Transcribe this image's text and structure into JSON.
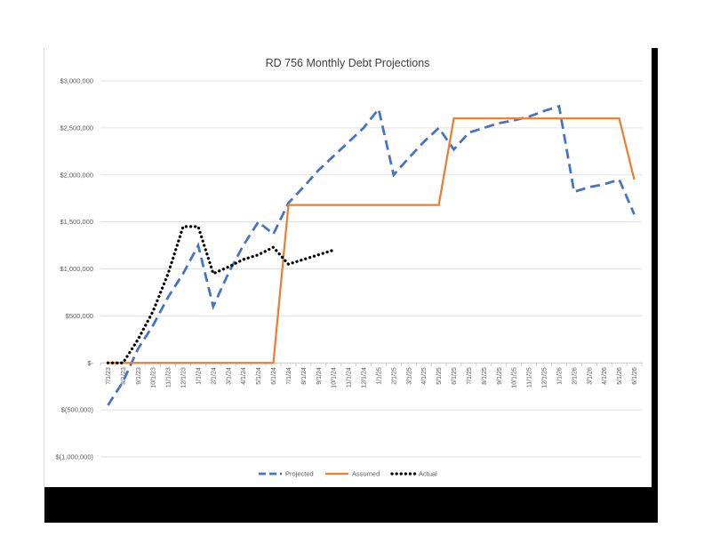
{
  "chart_data": {
    "type": "line",
    "title": "RD 756 Monthly Debt Projections",
    "xlabel": "",
    "ylabel": "",
    "ylim": [
      -1000000,
      3000000
    ],
    "y_ticks": [
      3000000,
      2500000,
      2000000,
      1500000,
      1000000,
      500000,
      0,
      -500000,
      -1000000
    ],
    "y_tick_labels": [
      "$3,000,000",
      "$2,500,000",
      "$2,000,000",
      "$1,500,000",
      "$1,000,000",
      "$500,000",
      "$-",
      "$(500,000)",
      "$(1,000,000)"
    ],
    "categories": [
      "7/1/23",
      "8/1/23",
      "9/1/23",
      "10/1/23",
      "11/1/23",
      "12/1/23",
      "1/1/24",
      "2/1/24",
      "3/1/24",
      "4/1/24",
      "5/1/24",
      "6/1/24",
      "7/1/24",
      "8/1/24",
      "9/1/24",
      "10/1/24",
      "11/1/24",
      "12/1/24",
      "1/1/25",
      "2/1/25",
      "3/1/25",
      "4/1/25",
      "5/1/25",
      "6/1/25",
      "7/1/25",
      "8/1/25",
      "9/1/25",
      "10/1/25",
      "11/1/25",
      "12/1/25",
      "1/1/26",
      "2/1/26",
      "3/1/26",
      "4/1/26",
      "5/1/26",
      "6/1/26"
    ],
    "grid": true,
    "legend_position": "bottom",
    "series": [
      {
        "name": "Projected",
        "color": "#4472c4",
        "style": "dashed",
        "values": [
          -450000,
          -200000,
          150000,
          400000,
          700000,
          950000,
          1250000,
          600000,
          950000,
          1250000,
          1500000,
          1370000,
          1700000,
          1870000,
          2050000,
          2200000,
          2350000,
          2500000,
          2700000,
          2000000,
          2180000,
          2350000,
          2500000,
          2270000,
          2450000,
          2500000,
          2550000,
          2580000,
          2620000,
          2680000,
          2730000,
          1820000,
          1870000,
          1900000,
          1950000,
          1580000
        ]
      },
      {
        "name": "Assumed",
        "color": "#ed7d31",
        "style": "solid",
        "values": [
          0,
          0,
          0,
          0,
          0,
          0,
          0,
          0,
          0,
          0,
          0,
          0,
          1680000,
          1680000,
          1680000,
          1680000,
          1680000,
          1680000,
          1680000,
          1680000,
          1680000,
          1680000,
          1680000,
          2600000,
          2600000,
          2600000,
          2600000,
          2600000,
          2600000,
          2600000,
          2600000,
          2600000,
          2600000,
          2600000,
          2600000,
          1950000
        ]
      },
      {
        "name": "Actual",
        "color": "#000000",
        "style": "dotted",
        "values": [
          0,
          0,
          250000,
          550000,
          950000,
          1450000,
          1450000,
          950000,
          1020000,
          1100000,
          1150000,
          1230000,
          1050000,
          1100000,
          1150000,
          1200000,
          null,
          null,
          null,
          null,
          null,
          null,
          null,
          null,
          null,
          null,
          null,
          null,
          null,
          null,
          null,
          null,
          null,
          null,
          null,
          null
        ]
      }
    ]
  }
}
